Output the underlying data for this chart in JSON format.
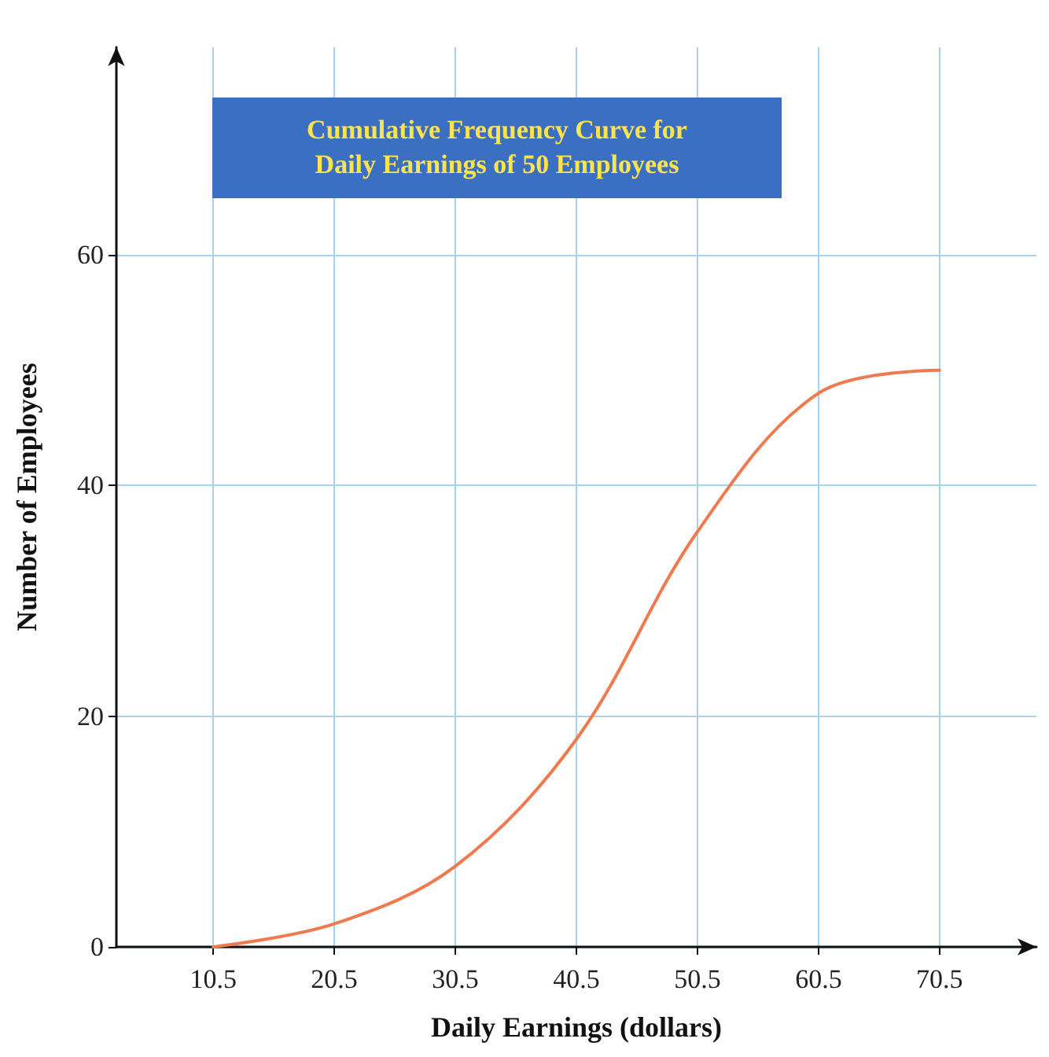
{
  "chart_data": {
    "type": "line",
    "title": "Cumulative Frequency Curve for\nDaily Earnings of 50 Employees",
    "xlabel": "Daily Earnings (dollars)",
    "ylabel": "Number of Employees",
    "x": [
      10.5,
      20.5,
      30.5,
      40.5,
      50.5,
      60.5,
      70.5
    ],
    "series": [
      {
        "color": "#f07a50",
        "values": [
          0,
          2,
          7,
          18,
          36,
          48,
          50
        ]
      }
    ],
    "xlim": [
      2.5,
      78.5
    ],
    "xticks": [
      10.5,
      20.5,
      30.5,
      40.5,
      50.5,
      60.5,
      70.5
    ],
    "ylim": [
      0,
      78
    ],
    "yticks": [
      0,
      20,
      40,
      60
    ],
    "grid": true,
    "marker": "none",
    "line_style": "solid"
  }
}
